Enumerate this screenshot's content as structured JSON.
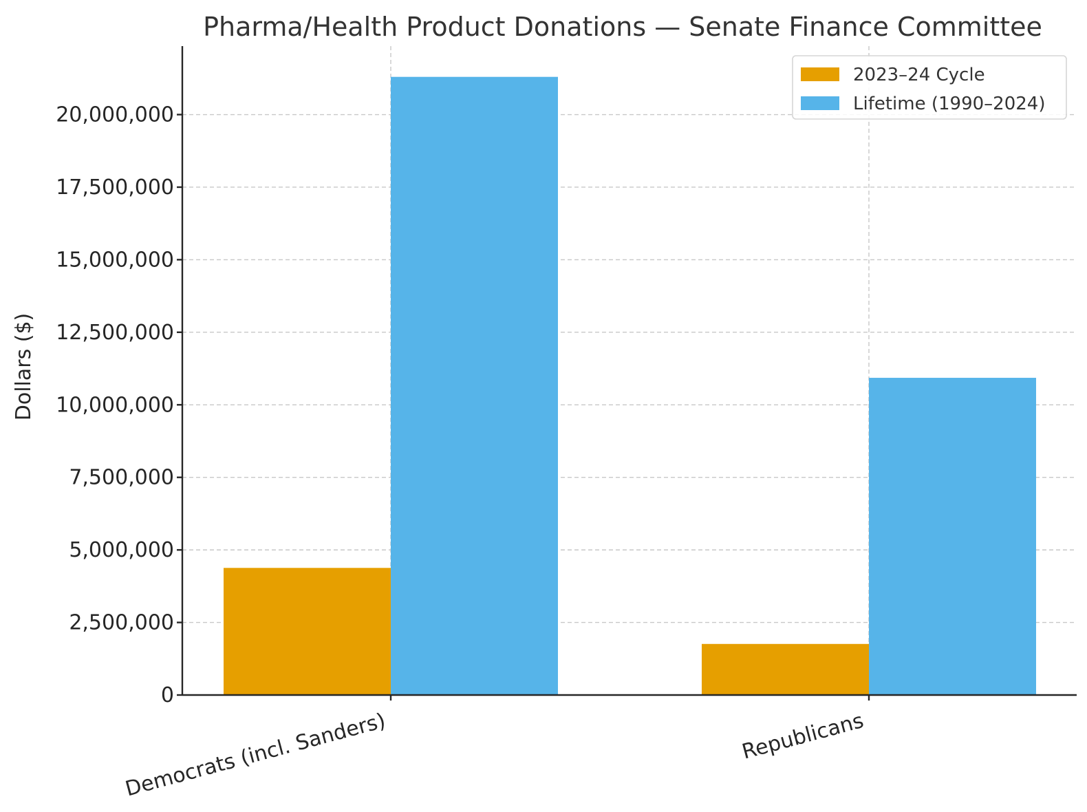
{
  "chart_data": {
    "type": "bar",
    "title": "Pharma/Health Product Donations — Senate Finance Committee",
    "xlabel": "",
    "ylabel": "Dollars ($)",
    "categories": [
      "Democrats (incl. Sanders)",
      "Republicans"
    ],
    "series": [
      {
        "name": "2023–24 Cycle",
        "color": "#E69F00",
        "values": [
          4380000,
          1760000
        ]
      },
      {
        "name": "Lifetime (1990–2024)",
        "color": "#56B4E9",
        "values": [
          21300000,
          10930000
        ]
      }
    ],
    "ylim": [
      0,
      22360000
    ],
    "yticks": [
      0,
      2500000,
      5000000,
      7500000,
      10000000,
      12500000,
      15000000,
      17500000,
      20000000
    ],
    "ytick_labels": [
      "0",
      "2,500,000",
      "5,000,000",
      "7,500,000",
      "10,000,000",
      "12,500,000",
      "15,000,000",
      "17,500,000",
      "20,000,000"
    ],
    "grid": true,
    "legend_position": "top-right"
  }
}
